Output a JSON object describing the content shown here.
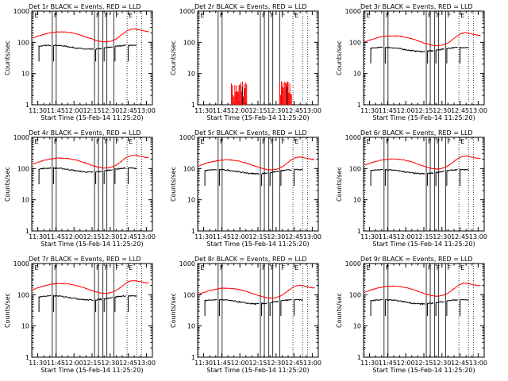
{
  "page": {
    "background": "#ffffff",
    "events_color": "#000000",
    "lld_color": "#ff0000"
  },
  "chart_data": [
    {
      "type": "line",
      "title": "Det 1r BLACK = Events, RED = LLD",
      "xlabel": "Start Time (15-Feb-14 11:25:20)",
      "ylabel": "Counts/sec",
      "yscale": "log",
      "ylim": [
        1,
        1000
      ],
      "xlim": [
        "11:25",
        "13:05"
      ],
      "xticks": [
        "11:30",
        "11:45",
        "12:00",
        "12:15",
        "12:30",
        "12:45",
        "13:00"
      ],
      "yticks": [
        "1",
        "10",
        "100",
        "1000"
      ],
      "markers": [
        {
          "time": "11:26",
          "label": "E"
        },
        {
          "time": "11:42",
          "label": "F"
        },
        {
          "time": "12:17",
          "label": "F"
        },
        {
          "time": "12:24",
          "label": "F"
        },
        {
          "time": "12:33",
          "label": "F"
        },
        {
          "time": "12:44",
          "label": "E"
        }
      ],
      "profile": "normal",
      "events_level": 70,
      "lld_level": 160,
      "lld_peak": 350
    },
    {
      "type": "line",
      "title": "Det 2r BLACK = Events, RED = LLD",
      "xlabel": "Start Time (15-Feb-14 11:25:20)",
      "ylabel": "Counts/sec",
      "yscale": "log",
      "ylim": [
        1,
        1000
      ],
      "xlim": [
        "11:25",
        "13:05"
      ],
      "xticks": [
        "11:30",
        "11:45",
        "12:00",
        "12:15",
        "12:30",
        "12:45",
        "13:00"
      ],
      "yticks": [
        "1",
        "10",
        "100",
        "1000"
      ],
      "markers": [
        {
          "time": "11:26",
          "label": "E"
        },
        {
          "time": "11:42",
          "label": "F"
        },
        {
          "time": "12:17",
          "label": "F"
        },
        {
          "time": "12:24",
          "label": "F"
        },
        {
          "time": "12:33",
          "label": "F"
        },
        {
          "time": "12:44",
          "label": "E"
        }
      ],
      "profile": "sparse",
      "events_level": 1.5,
      "lld_level": 2,
      "lld_peak": 5
    },
    {
      "type": "line",
      "title": "Det 3r BLACK = Events, RED = LLD",
      "xlabel": "Start Time (15-Feb-14 11:25:20)",
      "ylabel": "Counts/sec",
      "yscale": "log",
      "ylim": [
        1,
        1000
      ],
      "xlim": [
        "11:25",
        "13:05"
      ],
      "xticks": [
        "11:30",
        "11:45",
        "12:00",
        "12:15",
        "12:30",
        "12:45",
        "13:00"
      ],
      "yticks": [
        "1",
        "10",
        "100",
        "1000"
      ],
      "markers": [
        {
          "time": "11:26",
          "label": "E"
        },
        {
          "time": "11:42",
          "label": "F"
        },
        {
          "time": "12:17",
          "label": "F"
        },
        {
          "time": "12:24",
          "label": "F"
        },
        {
          "time": "12:33",
          "label": "F"
        },
        {
          "time": "12:44",
          "label": "E"
        }
      ],
      "profile": "normal",
      "events_level": 60,
      "lld_level": 120,
      "lld_peak": 300
    },
    {
      "type": "line",
      "title": "Det 4r BLACK = Events, RED = LLD",
      "xlabel": "Start Time (15-Feb-14 11:25:20)",
      "ylabel": "Counts/sec",
      "yscale": "log",
      "ylim": [
        1,
        1000
      ],
      "xlim": [
        "11:25",
        "13:05"
      ],
      "xticks": [
        "11:30",
        "11:45",
        "12:00",
        "12:15",
        "12:30",
        "12:45",
        "13:00"
      ],
      "yticks": [
        "1",
        "10",
        "100",
        "1000"
      ],
      "markers": [
        {
          "time": "11:26",
          "label": "E"
        },
        {
          "time": "11:42",
          "label": "F"
        },
        {
          "time": "12:17",
          "label": "F"
        },
        {
          "time": "12:24",
          "label": "F"
        },
        {
          "time": "12:33",
          "label": "F"
        },
        {
          "time": "12:44",
          "label": "E"
        }
      ],
      "profile": "normal",
      "events_level": 90,
      "lld_level": 160,
      "lld_peak": 380
    },
    {
      "type": "line",
      "title": "Det 5r BLACK = Events, RED = LLD",
      "xlabel": "Start Time (15-Feb-14 11:25:20)",
      "ylabel": "Counts/sec",
      "yscale": "log",
      "ylim": [
        1,
        1000
      ],
      "xlim": [
        "11:25",
        "13:05"
      ],
      "xticks": [
        "11:30",
        "11:45",
        "12:00",
        "12:15",
        "12:30",
        "12:45",
        "13:00"
      ],
      "yticks": [
        "1",
        "10",
        "100",
        "1000"
      ],
      "markers": [
        {
          "time": "11:26",
          "label": "E"
        },
        {
          "time": "11:42",
          "label": "F"
        },
        {
          "time": "12:17",
          "label": "F"
        },
        {
          "time": "12:24",
          "label": "F"
        },
        {
          "time": "12:33",
          "label": "F"
        },
        {
          "time": "12:44",
          "label": "E"
        }
      ],
      "profile": "normal",
      "events_level": 80,
      "lld_level": 140,
      "lld_peak": 330
    },
    {
      "type": "line",
      "title": "Det 6r BLACK = Events, RED = LLD",
      "xlabel": "Start Time (15-Feb-14 11:25:20)",
      "ylabel": "Counts/sec",
      "yscale": "log",
      "ylim": [
        1,
        1000
      ],
      "xlim": [
        "11:25",
        "13:05"
      ],
      "xticks": [
        "11:30",
        "11:45",
        "12:00",
        "12:15",
        "12:30",
        "12:45",
        "13:00"
      ],
      "yticks": [
        "1",
        "10",
        "100",
        "1000"
      ],
      "markers": [
        {
          "time": "11:26",
          "label": "E"
        },
        {
          "time": "11:42",
          "label": "F"
        },
        {
          "time": "12:17",
          "label": "F"
        },
        {
          "time": "12:24",
          "label": "F"
        },
        {
          "time": "12:33",
          "label": "F"
        },
        {
          "time": "12:44",
          "label": "E"
        }
      ],
      "profile": "normal",
      "events_level": 80,
      "lld_level": 150,
      "lld_peak": 340
    },
    {
      "type": "line",
      "title": "Det 7r BLACK = Events, RED = LLD",
      "xlabel": "Start Time (15-Feb-14 11:25:20)",
      "ylabel": "Counts/sec",
      "yscale": "log",
      "ylim": [
        1,
        1000
      ],
      "xlim": [
        "11:25",
        "13:05"
      ],
      "xticks": [
        "11:30",
        "11:45",
        "12:00",
        "12:15",
        "12:30",
        "12:45",
        "13:00"
      ],
      "yticks": [
        "1",
        "10",
        "100",
        "1000"
      ],
      "markers": [
        {
          "time": "11:26",
          "label": "E"
        },
        {
          "time": "11:42",
          "label": "F"
        },
        {
          "time": "12:17",
          "label": "F"
        },
        {
          "time": "12:24",
          "label": "F"
        },
        {
          "time": "12:33",
          "label": "F"
        },
        {
          "time": "12:44",
          "label": "E"
        }
      ],
      "profile": "normal",
      "events_level": 80,
      "lld_level": 170,
      "lld_peak": 380
    },
    {
      "type": "line",
      "title": "Det 8r BLACK = Events, RED = LLD",
      "xlabel": "Start Time (15-Feb-14 11:25:20)",
      "ylabel": "Counts/sec",
      "yscale": "log",
      "ylim": [
        1,
        1000
      ],
      "xlim": [
        "11:25",
        "13:05"
      ],
      "xticks": [
        "11:30",
        "11:45",
        "12:00",
        "12:15",
        "12:30",
        "12:45",
        "13:00"
      ],
      "yticks": [
        "1",
        "10",
        "100",
        "1000"
      ],
      "markers": [
        {
          "time": "11:26",
          "label": "E"
        },
        {
          "time": "11:42",
          "label": "F"
        },
        {
          "time": "12:17",
          "label": "F"
        },
        {
          "time": "12:24",
          "label": "F"
        },
        {
          "time": "12:33",
          "label": "F"
        },
        {
          "time": "12:44",
          "label": "E"
        }
      ],
      "profile": "normal",
      "events_level": 60,
      "lld_level": 120,
      "lld_peak": 280
    },
    {
      "type": "line",
      "title": "Det 9r BLACK = Events, RED = LLD",
      "xlabel": "Start Time (15-Feb-14 11:25:20)",
      "ylabel": "Counts/sec",
      "yscale": "log",
      "ylim": [
        1,
        1000
      ],
      "xlim": [
        "11:25",
        "13:05"
      ],
      "xticks": [
        "11:30",
        "11:45",
        "12:00",
        "12:15",
        "12:30",
        "12:45",
        "13:00"
      ],
      "yticks": [
        "1",
        "10",
        "100",
        "1000"
      ],
      "markers": [
        {
          "time": "11:26",
          "label": "E"
        },
        {
          "time": "11:42",
          "label": "F"
        },
        {
          "time": "12:17",
          "label": "F"
        },
        {
          "time": "12:24",
          "label": "F"
        },
        {
          "time": "12:33",
          "label": "F"
        },
        {
          "time": "12:44",
          "label": "E"
        }
      ],
      "profile": "normal",
      "events_level": 60,
      "lld_level": 140,
      "lld_peak": 300
    }
  ]
}
